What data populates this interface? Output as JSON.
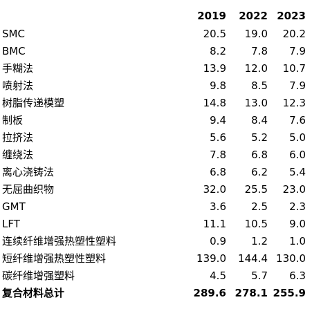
{
  "columns": [
    "2019",
    "2022",
    "2023"
  ],
  "rows": [
    {
      "label": "SMC",
      "values": [
        "20.5",
        "19.0",
        "20.2"
      ]
    },
    {
      "label": "BMC",
      "values": [
        "8.2",
        "7.8",
        "7.9"
      ]
    },
    {
      "label": "手糊法",
      "values": [
        "13.9",
        "12.0",
        "10.7"
      ]
    },
    {
      "label": "喷射法",
      "values": [
        "9.8",
        "8.5",
        "7.9"
      ]
    },
    {
      "label": "树脂传递模塑",
      "values": [
        "14.8",
        "13.0",
        "12.3"
      ]
    },
    {
      "label": "制板",
      "values": [
        "9.4",
        "8.4",
        "7.6"
      ]
    },
    {
      "label": "拉挤法",
      "values": [
        "5.6",
        "5.2",
        "5.0"
      ]
    },
    {
      "label": "缠绕法",
      "values": [
        "7.8",
        "6.8",
        "6.0"
      ]
    },
    {
      "label": "离心浇铸法",
      "values": [
        "6.8",
        "6.2",
        "5.4"
      ]
    },
    {
      "label": "无屈曲织物",
      "values": [
        "32.0",
        "25.5",
        "23.0"
      ]
    },
    {
      "label": "GMT",
      "values": [
        "3.6",
        "2.5",
        "2.3"
      ]
    },
    {
      "label": "LFT",
      "values": [
        "11.1",
        "10.5",
        "9.0"
      ]
    },
    {
      "label": "连续纤维增强热塑性塑料",
      "values": [
        "0.9",
        "1.2",
        "1.0"
      ]
    },
    {
      "label": "短纤维增强热塑性塑料",
      "values": [
        "139.0",
        "144.4",
        "130.0"
      ]
    },
    {
      "label": "碳纤维增强塑料",
      "values": [
        "4.5",
        "5.7",
        "6.3"
      ]
    }
  ],
  "total": {
    "label": "复合材料总计",
    "values": [
      "289.6",
      "278.1",
      "255.9"
    ]
  }
}
